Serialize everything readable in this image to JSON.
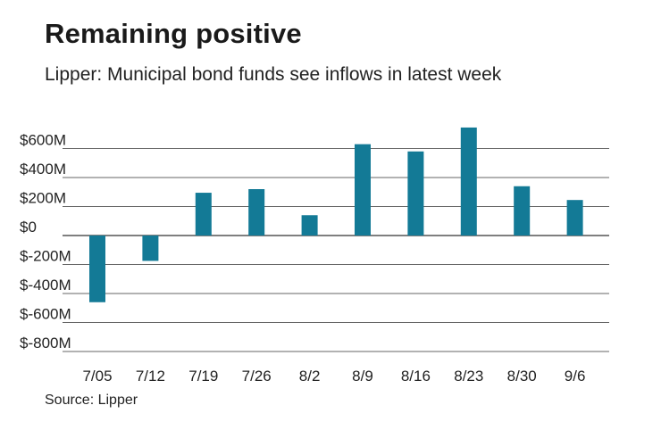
{
  "chart_data": {
    "type": "bar",
    "title": "Remaining positive",
    "subtitle": "Lipper: Municipal bond funds see inflows in latest week",
    "source": "Source: Lipper",
    "categories": [
      "7/05",
      "7/12",
      "7/19",
      "7/26",
      "8/2",
      "8/9",
      "8/16",
      "8/23",
      "8/30",
      "9/6"
    ],
    "values": [
      -460,
      -175,
      295,
      320,
      140,
      630,
      580,
      745,
      340,
      245
    ],
    "value_unit": "$M",
    "ylim": [
      -800,
      700
    ],
    "yticks": [
      600,
      400,
      200,
      0,
      -200,
      -400,
      -600,
      -800
    ],
    "ytick_labels": [
      "$600M",
      "$400M",
      "$200M",
      "$0",
      "$-200M",
      "$-400M",
      "$-600M",
      "$-800M"
    ],
    "xlabel": "",
    "ylabel": "",
    "grid": true,
    "colors": {
      "bar": "#137a96",
      "grid": "#333333",
      "text": "#222222"
    }
  }
}
